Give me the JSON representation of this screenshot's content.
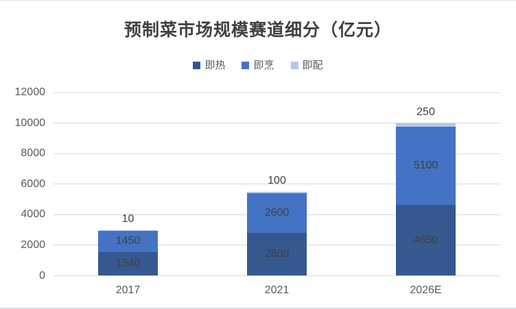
{
  "title": "预制菜市场规模赛道细分（亿元）",
  "legend": {
    "items": [
      {
        "label": "即热",
        "color": "#35598F"
      },
      {
        "label": "即烹",
        "color": "#4472C4"
      },
      {
        "label": "即配",
        "color": "#B4C7E7"
      }
    ]
  },
  "colors": {
    "series_dark_blue": "#35598F",
    "series_medium_blue": "#4472C4",
    "series_light_blue": "#B4C7E7",
    "gridline": "#d9d9d9",
    "axis_text": "#595959",
    "data_label_text": "#404040",
    "title_text": "#404040"
  },
  "chart_data": {
    "type": "bar",
    "stacked": true,
    "title": "预制菜市场规模赛道细分（亿元）",
    "xlabel": "",
    "ylabel": "",
    "categories": [
      "2017",
      "2021",
      "2026E"
    ],
    "series": [
      {
        "name": "即热",
        "color": "#35598F",
        "values": [
          1540,
          2800,
          4650
        ],
        "label_placement": "inside"
      },
      {
        "name": "即烹",
        "color": "#4472C4",
        "values": [
          1450,
          2600,
          5100
        ],
        "label_placement": "inside"
      },
      {
        "name": "即配",
        "color": "#B4C7E7",
        "values": [
          10,
          100,
          250
        ],
        "label_placement": "above"
      }
    ],
    "totals": [
      3000,
      5500,
      10000
    ],
    "ylim": [
      0,
      12000
    ],
    "ytick_step": 2000,
    "yticks": [
      "0",
      "2000",
      "4000",
      "6000",
      "8000",
      "10000",
      "12000"
    ],
    "grid": true,
    "legend_position": "top"
  }
}
